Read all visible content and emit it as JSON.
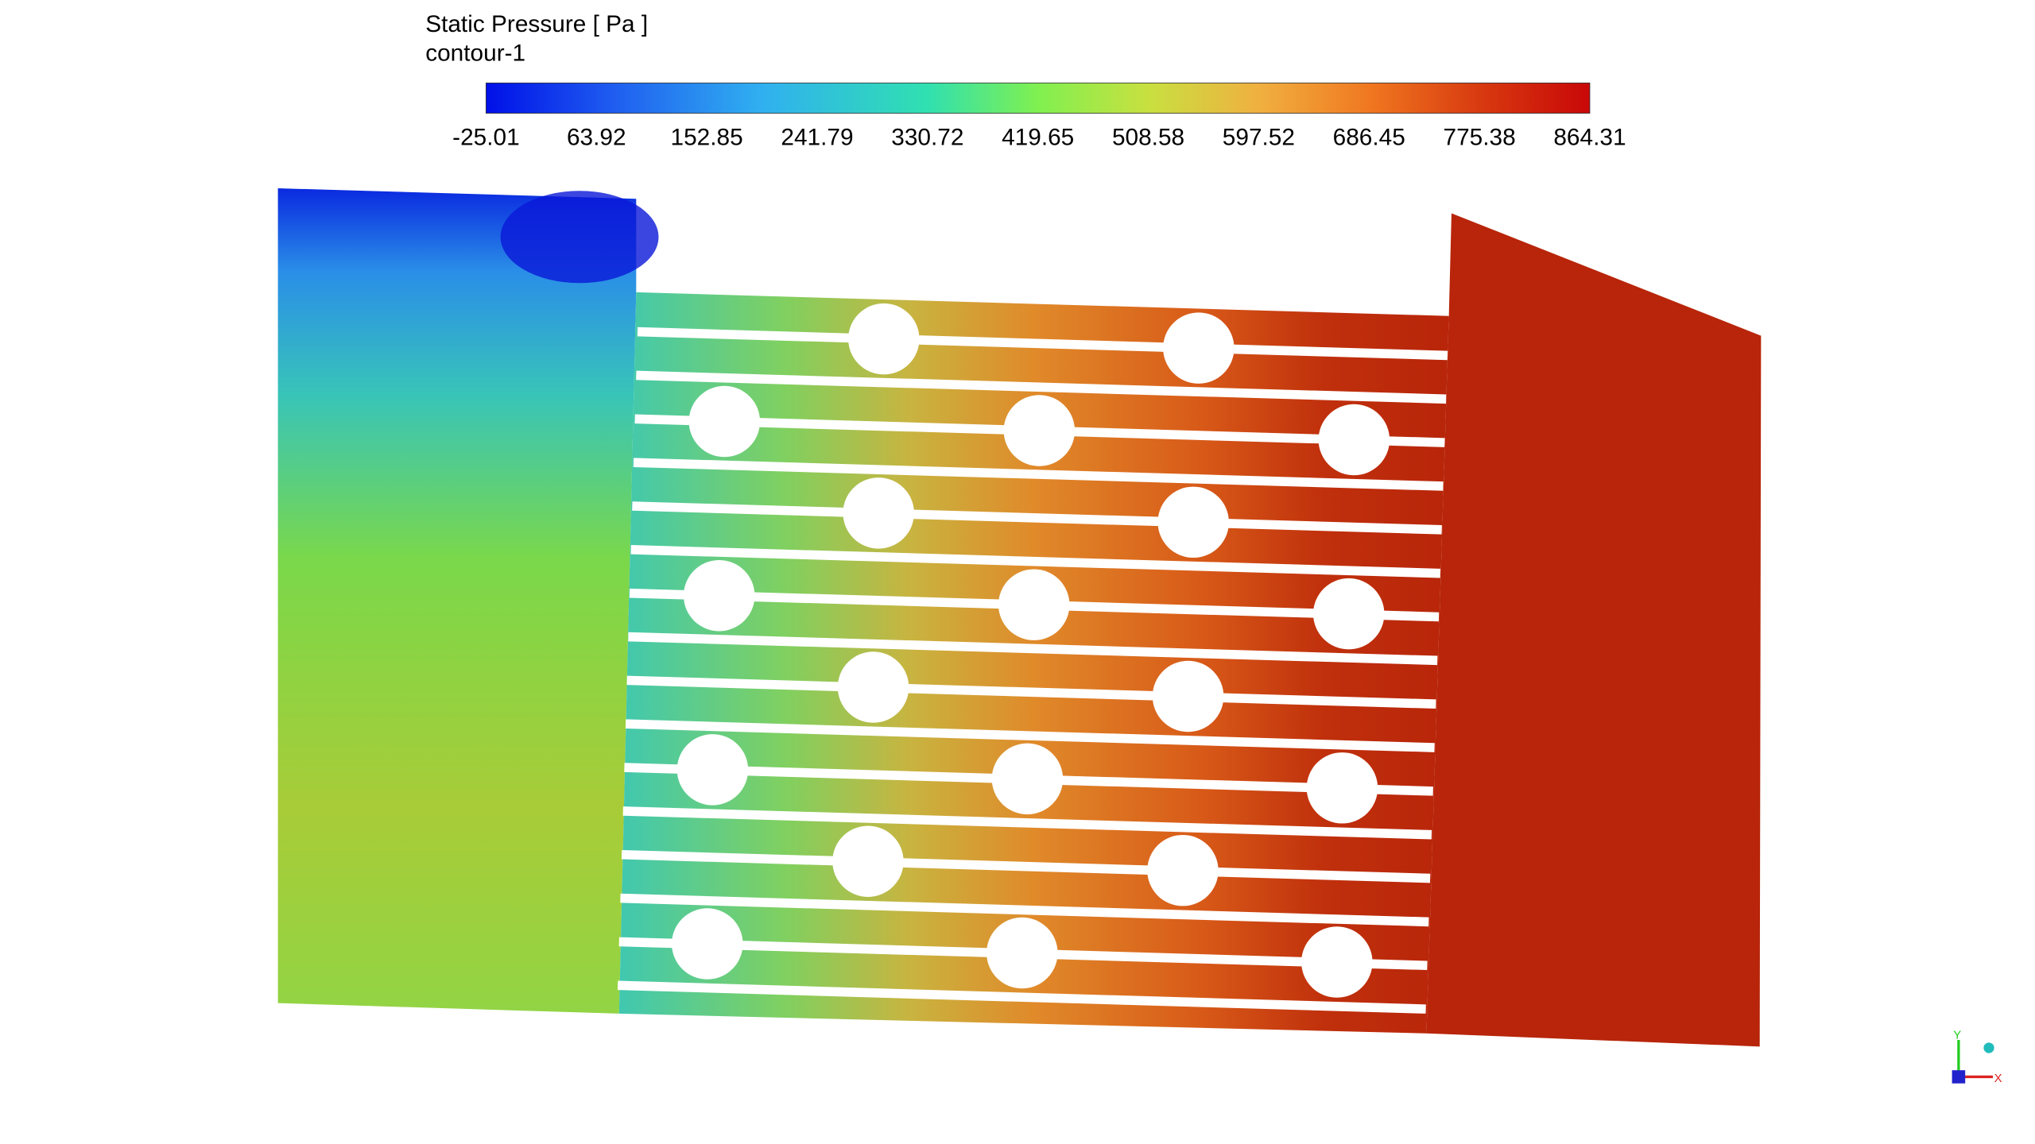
{
  "legend": {
    "title": "Static Pressure [ Pa ]",
    "subtitle": "contour-1",
    "ticks": [
      -25.01,
      63.92,
      152.85,
      241.79,
      330.72,
      419.65,
      508.58,
      597.52,
      686.45,
      775.38,
      864.31
    ]
  },
  "triad": {
    "x": "X",
    "y": "Y"
  }
}
